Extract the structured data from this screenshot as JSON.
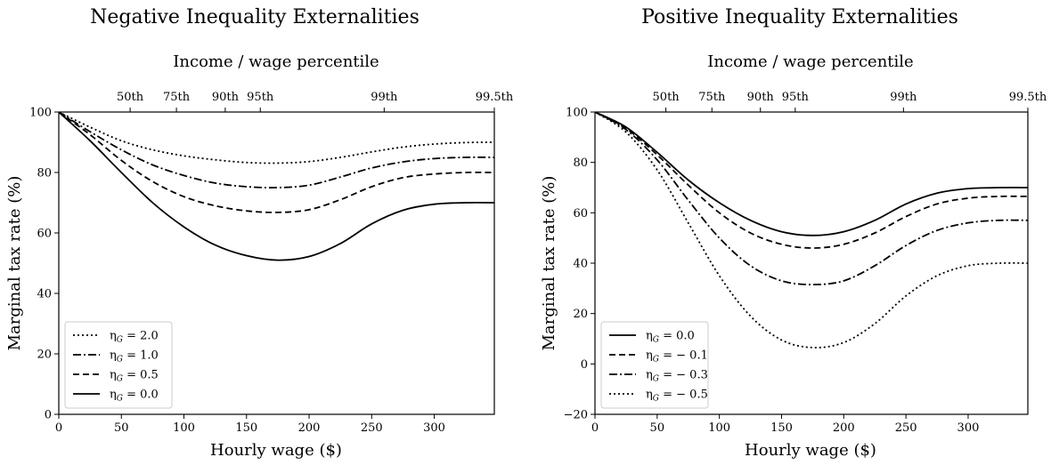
{
  "chart_data": [
    {
      "type": "line",
      "title": "Negative Inequality Externalities",
      "top_axis_label": "Income / wage percentile",
      "top_ticks": [
        {
          "x": 57,
          "label": "50th"
        },
        {
          "x": 94,
          "label": "75th"
        },
        {
          "x": 133,
          "label": "90th"
        },
        {
          "x": 161,
          "label": "95th"
        },
        {
          "x": 260,
          "label": "99th"
        },
        {
          "x": 348,
          "label": "99.5th"
        }
      ],
      "xlabel": "Hourly wage ($)",
      "ylabel": "Marginal tax rate (%)",
      "xlim": [
        0,
        348
      ],
      "ylim": [
        0,
        100
      ],
      "xticks": [
        0,
        50,
        100,
        150,
        200,
        250,
        300
      ],
      "yticks": [
        0,
        20,
        40,
        60,
        80,
        100
      ],
      "legend_position": "lower-left",
      "legend": [
        {
          "label": "η_G = 2.0",
          "style": "dotted"
        },
        {
          "label": "η_G = 1.0",
          "style": "dashdot"
        },
        {
          "label": "η_G = 0.5",
          "style": "dashed"
        },
        {
          "label": "η_G = 0.0",
          "style": "solid"
        }
      ],
      "series": [
        {
          "name": "η_G = 2.0",
          "style": "dotted",
          "x": [
            0,
            25,
            50,
            75,
            100,
            125,
            150,
            175,
            200,
            225,
            250,
            275,
            300,
            325,
            348
          ],
          "y": [
            100,
            95,
            90.5,
            87.5,
            85.5,
            84.2,
            83.3,
            83.1,
            83.6,
            85,
            86.8,
            88.4,
            89.4,
            89.9,
            90
          ]
        },
        {
          "name": "η_G = 1.0",
          "style": "dashdot",
          "x": [
            0,
            25,
            50,
            75,
            100,
            125,
            150,
            175,
            200,
            225,
            250,
            275,
            300,
            325,
            348
          ],
          "y": [
            100,
            93.5,
            87.5,
            82.5,
            79,
            76.5,
            75.3,
            75,
            75.8,
            78.5,
            81.5,
            83.5,
            84.6,
            85,
            85
          ]
        },
        {
          "name": "η_G = 0.5",
          "style": "dashed",
          "x": [
            0,
            25,
            50,
            75,
            100,
            125,
            150,
            175,
            200,
            225,
            250,
            275,
            300,
            325,
            348
          ],
          "y": [
            100,
            92.5,
            84,
            77,
            72,
            69,
            67.3,
            66.8,
            67.7,
            71,
            75.3,
            78.3,
            79.5,
            80,
            80
          ]
        },
        {
          "name": "η_G = 0.0",
          "style": "solid",
          "x": [
            0,
            25,
            50,
            75,
            100,
            125,
            150,
            175,
            200,
            225,
            250,
            275,
            300,
            325,
            348
          ],
          "y": [
            100,
            90.5,
            80,
            70,
            62,
            56,
            52.5,
            51,
            52.2,
            56.5,
            63,
            67.5,
            69.5,
            70,
            70
          ]
        }
      ]
    },
    {
      "type": "line",
      "title": "Positive Inequality Externalities",
      "top_axis_label": "Income / wage percentile",
      "top_ticks": [
        {
          "x": 57,
          "label": "50th"
        },
        {
          "x": 94,
          "label": "75th"
        },
        {
          "x": 133,
          "label": "90th"
        },
        {
          "x": 161,
          "label": "95th"
        },
        {
          "x": 248,
          "label": "99th"
        },
        {
          "x": 348,
          "label": "99.5th"
        }
      ],
      "xlabel": "Hourly wage ($)",
      "ylabel": "Marginal tax rate (%)",
      "xlim": [
        0,
        348
      ],
      "ylim": [
        -20,
        100
      ],
      "xticks": [
        0,
        50,
        100,
        150,
        200,
        250,
        300
      ],
      "yticks": [
        -20,
        0,
        20,
        40,
        60,
        80,
        100
      ],
      "legend_position": "lower-left",
      "legend": [
        {
          "label": "η_G = 0.0",
          "style": "solid"
        },
        {
          "label": "η_G = − 0.1",
          "style": "dashed"
        },
        {
          "label": "η_G = − 0.3",
          "style": "dashdot"
        },
        {
          "label": "η_G = − 0.5",
          "style": "dotted"
        }
      ],
      "series": [
        {
          "name": "η_G = 0.0",
          "style": "solid",
          "x": [
            0,
            25,
            50,
            75,
            100,
            125,
            150,
            175,
            200,
            225,
            250,
            275,
            300,
            325,
            348
          ],
          "y": [
            100,
            94,
            84,
            73,
            64,
            57,
            52.5,
            51,
            52.5,
            57,
            63.5,
            67.8,
            69.6,
            70,
            70
          ]
        },
        {
          "name": "η_G = − 0.1",
          "style": "dashed",
          "x": [
            0,
            25,
            50,
            75,
            100,
            125,
            150,
            175,
            200,
            225,
            250,
            275,
            300,
            325,
            348
          ],
          "y": [
            100,
            93.5,
            83,
            71,
            60,
            52,
            47.5,
            46,
            47.5,
            52,
            58.5,
            63.5,
            65.8,
            66.5,
            66.5
          ]
        },
        {
          "name": "η_G = − 0.3",
          "style": "dashdot",
          "x": [
            0,
            25,
            50,
            75,
            100,
            125,
            150,
            175,
            200,
            225,
            250,
            275,
            300,
            325,
            348
          ],
          "y": [
            100,
            93,
            81,
            65,
            50,
            39,
            33,
            31.5,
            33,
            39,
            47,
            53,
            56,
            57,
            57
          ]
        },
        {
          "name": "η_G = − 0.5",
          "style": "dotted",
          "x": [
            0,
            25,
            50,
            75,
            100,
            125,
            150,
            175,
            200,
            225,
            250,
            275,
            300,
            325,
            348
          ],
          "y": [
            100,
            92,
            77,
            56,
            35,
            19,
            9.5,
            6.5,
            8.5,
            16,
            27,
            35,
            39,
            40,
            40
          ]
        }
      ]
    }
  ]
}
